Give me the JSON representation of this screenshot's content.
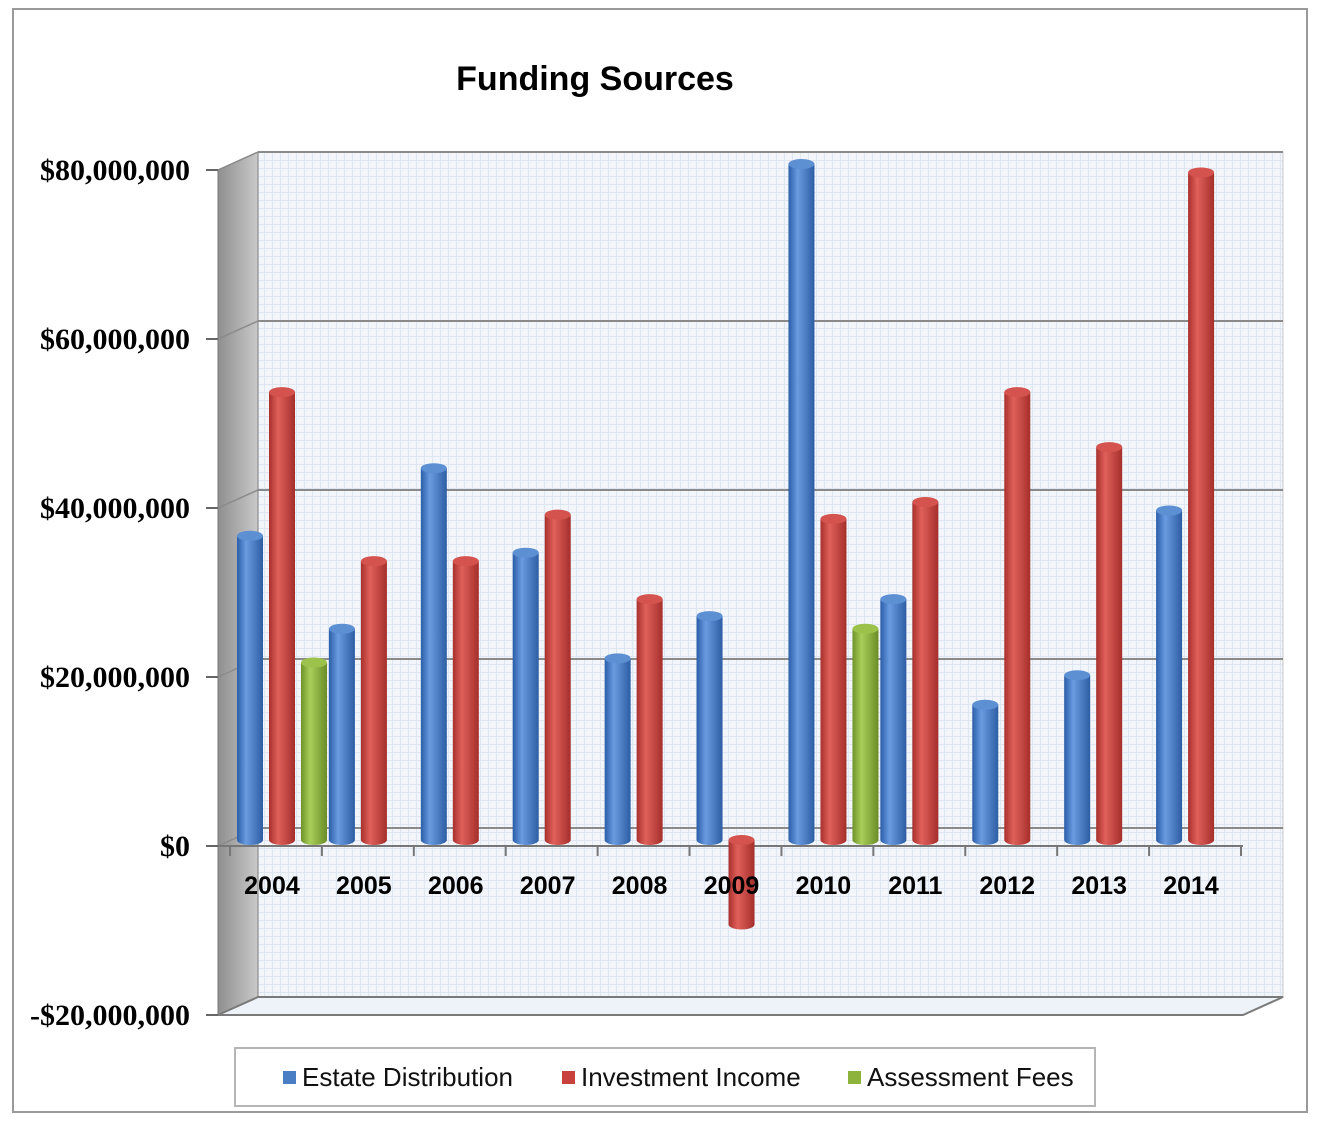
{
  "chart_data": {
    "type": "bar",
    "title": "Funding Sources",
    "xlabel": "",
    "ylabel": "",
    "categories": [
      "2004",
      "2005",
      "2006",
      "2007",
      "2008",
      "2009",
      "2010",
      "2011",
      "2012",
      "2013",
      "2014"
    ],
    "series": [
      {
        "name": "Estate Distribution",
        "color": "#4a7ec4",
        "values": [
          36000000,
          25000000,
          44000000,
          34000000,
          21500000,
          26500000,
          80000000,
          28500000,
          16000000,
          19500000,
          39000000
        ]
      },
      {
        "name": "Investment Income",
        "color": "#c8413d",
        "values": [
          53000000,
          33000000,
          33000000,
          38500000,
          28500000,
          -10000000,
          38000000,
          40000000,
          53000000,
          46500000,
          79000000
        ]
      },
      {
        "name": "Assessment Fees",
        "color": "#8db33d",
        "values": [
          21000000,
          null,
          null,
          null,
          null,
          null,
          25000000,
          null,
          null,
          null,
          null
        ]
      }
    ],
    "ylim": [
      -20000000,
      80000000
    ],
    "yticks": [
      -20000000,
      0,
      20000000,
      40000000,
      60000000,
      80000000
    ],
    "ytick_labels": [
      "-$20,000,000",
      "$0",
      "$20,000,000",
      "$40,000,000",
      "$60,000,000",
      "$80,000,000"
    ],
    "grid": true,
    "legend_position": "bottom"
  }
}
